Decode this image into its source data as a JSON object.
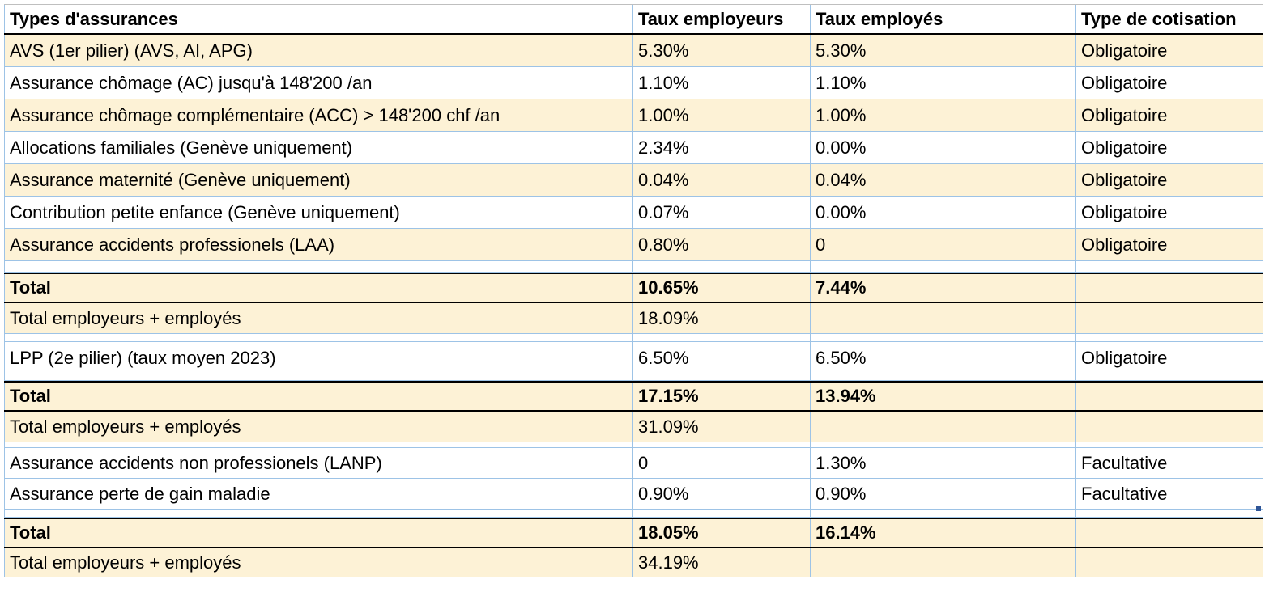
{
  "headers": [
    "Types d'assurances",
    "Taux employeurs",
    "Taux employés",
    "Type de cotisation"
  ],
  "section1": [
    [
      "AVS (1er pilier) (AVS, AI, APG)",
      "5.30%",
      "5.30%",
      "Obligatoire"
    ],
    [
      "Assurance chômage (AC) jusqu'à 148'200 /an",
      "1.10%",
      "1.10%",
      "Obligatoire"
    ],
    [
      "Assurance chômage complémentaire (ACC) > 148'200 chf /an",
      "1.00%",
      "1.00%",
      "Obligatoire"
    ],
    [
      "Allocations familiales (Genève uniquement)",
      "2.34%",
      "0.00%",
      "Obligatoire"
    ],
    [
      "Assurance maternité (Genève uniquement)",
      "0.04%",
      "0.04%",
      "Obligatoire"
    ],
    [
      "Contribution petite enfance (Genève uniquement)",
      "0.07%",
      "0.00%",
      "Obligatoire"
    ],
    [
      "Assurance accidents professionels  (LAA)",
      "0.80%",
      "0",
      "Obligatoire"
    ]
  ],
  "total1": [
    "Total",
    "10.65%",
    "7.44%",
    ""
  ],
  "sum1": [
    "Total employeurs + employés",
    "18.09%",
    "",
    ""
  ],
  "lpp": [
    "LPP (2e pilier) (taux moyen 2023)",
    "6.50%",
    "6.50%",
    "Obligatoire"
  ],
  "total2": [
    "Total",
    "17.15%",
    "13.94%",
    ""
  ],
  "sum2": [
    "Total employeurs + employés",
    "31.09%",
    "",
    ""
  ],
  "section3": [
    [
      "Assurance accidents non professionels  (LANP)",
      "0",
      "1.30%",
      "Facultative"
    ],
    [
      "Assurance perte de gain maladie",
      "0.90%",
      "0.90%",
      "Facultative"
    ]
  ],
  "total3": [
    "Total",
    "18.05%",
    "16.14%",
    ""
  ],
  "sum3": [
    "Total employeurs + employés",
    "34.19%",
    "",
    ""
  ],
  "colors": {
    "band": "#fdf2d6",
    "grid": "#9dc3e6"
  }
}
